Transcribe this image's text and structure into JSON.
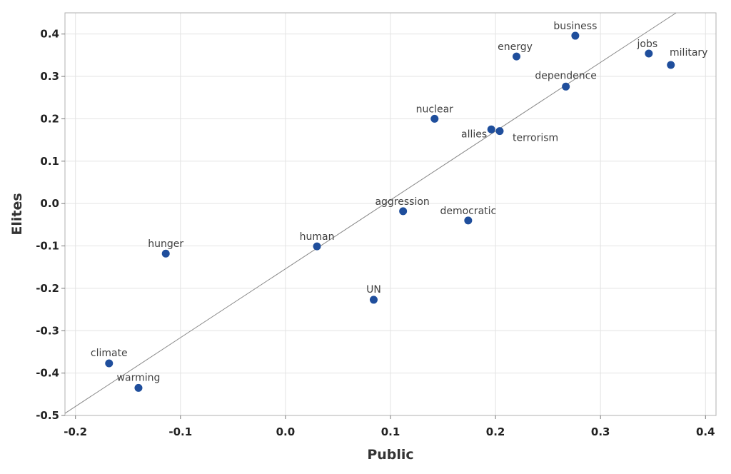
{
  "chart_data": {
    "type": "scatter",
    "xlabel": "Public",
    "ylabel": "Elites",
    "xlim": [
      -0.21,
      0.41
    ],
    "ylim": [
      -0.5,
      0.45
    ],
    "x_ticks": [
      "-0.2",
      "-0.1",
      "0.0",
      "0.1",
      "0.2",
      "0.3",
      "0.4"
    ],
    "y_ticks": [
      "0.4",
      "0.3",
      "0.2",
      "0.1",
      "0.0",
      "-0.1",
      "-0.2",
      "-0.3",
      "-0.4",
      "-0.5"
    ],
    "grid": true,
    "point_color": "#1f4e9c",
    "line_color": "#888888",
    "fit_line": {
      "x": [
        -0.21,
        0.372
      ],
      "y": [
        -0.495,
        0.45
      ]
    },
    "points": [
      {
        "label": "business",
        "x": 0.276,
        "y": 0.396
      },
      {
        "label": "energy",
        "x": 0.22,
        "y": 0.347
      },
      {
        "label": "jobs",
        "x": 0.346,
        "y": 0.354
      },
      {
        "label": "military",
        "x": 0.367,
        "y": 0.327
      },
      {
        "label": "dependence",
        "x": 0.267,
        "y": 0.276
      },
      {
        "label": "nuclear",
        "x": 0.142,
        "y": 0.2
      },
      {
        "label": "allies",
        "x": 0.196,
        "y": 0.175
      },
      {
        "label": "terrorism",
        "x": 0.204,
        "y": 0.171
      },
      {
        "label": "aggression",
        "x": 0.112,
        "y": -0.018
      },
      {
        "label": "democratic",
        "x": 0.174,
        "y": -0.04
      },
      {
        "label": "human",
        "x": 0.03,
        "y": -0.101
      },
      {
        "label": "hunger",
        "x": -0.114,
        "y": -0.118
      },
      {
        "label": "UN",
        "x": 0.084,
        "y": -0.227
      },
      {
        "label": "climate",
        "x": -0.168,
        "y": -0.377
      },
      {
        "label": "warming",
        "x": -0.14,
        "y": -0.435
      }
    ]
  }
}
